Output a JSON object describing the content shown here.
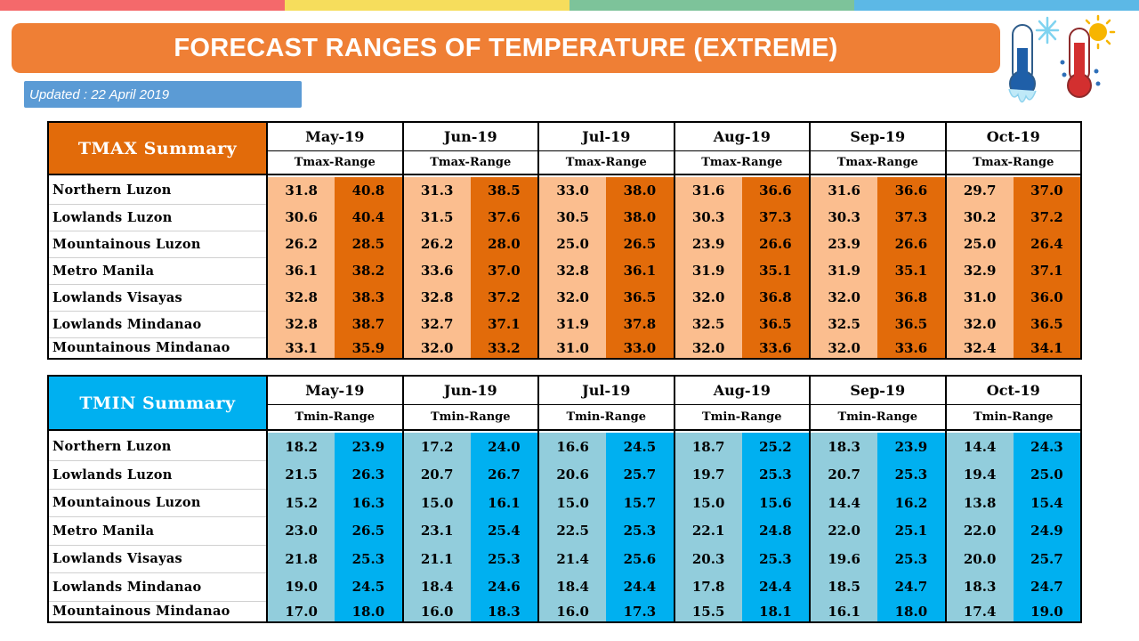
{
  "top_stripe_colors": [
    "#F4696B",
    "#F6DD5C",
    "#7DC39A",
    "#5CB8E6"
  ],
  "title": "FORECAST RANGES OF TEMPERATURE (EXTREME)",
  "updated": "Updated : 22 April 2019",
  "icons": [
    "cold-thermometer-snowflake-icon",
    "hot-thermometer-sun-icon"
  ],
  "colors": {
    "banner": "#EF7F35",
    "updated_box": "#5B9BD5",
    "tmax_dark": "#E26B0A",
    "tmax_light": "#FBBE8F",
    "tmin_dark": "#00B0F0",
    "tmin_light": "#92CDDC"
  },
  "months": [
    "May-19",
    "Jun-19",
    "Jul-19",
    "Aug-19",
    "Sep-19",
    "Oct-19"
  ],
  "tmax": {
    "label": "TMAX Summary",
    "range_label": "Tmax-Range",
    "rows": [
      {
        "region": "Northern Luzon",
        "values": [
          "31.8",
          "40.8",
          "31.3",
          "38.5",
          "33.0",
          "38.0",
          "31.6",
          "36.6",
          "31.6",
          "36.6",
          "29.7",
          "37.0"
        ]
      },
      {
        "region": "Lowlands Luzon",
        "values": [
          "30.6",
          "40.4",
          "31.5",
          "37.6",
          "30.5",
          "38.0",
          "30.3",
          "37.3",
          "30.3",
          "37.3",
          "30.2",
          "37.2"
        ]
      },
      {
        "region": "Mountainous Luzon",
        "values": [
          "26.2",
          "28.5",
          "26.2",
          "28.0",
          "25.0",
          "26.5",
          "23.9",
          "26.6",
          "23.9",
          "26.6",
          "25.0",
          "26.4"
        ]
      },
      {
        "region": "Metro Manila",
        "values": [
          "36.1",
          "38.2",
          "33.6",
          "37.0",
          "32.8",
          "36.1",
          "31.9",
          "35.1",
          "31.9",
          "35.1",
          "32.9",
          "37.1"
        ]
      },
      {
        "region": "Lowlands Visayas",
        "values": [
          "32.8",
          "38.3",
          "32.8",
          "37.2",
          "32.0",
          "36.5",
          "32.0",
          "36.8",
          "32.0",
          "36.8",
          "31.0",
          "36.0"
        ]
      },
      {
        "region": "Lowlands Mindanao",
        "values": [
          "32.8",
          "38.7",
          "32.7",
          "37.1",
          "31.9",
          "37.8",
          "32.5",
          "36.5",
          "32.5",
          "36.5",
          "32.0",
          "36.5"
        ]
      },
      {
        "region": "Mountainous Mindanao",
        "values": [
          "33.1",
          "35.9",
          "32.0",
          "33.2",
          "31.0",
          "33.0",
          "32.0",
          "33.6",
          "32.0",
          "33.6",
          "32.4",
          "34.1"
        ]
      }
    ]
  },
  "tmin": {
    "label": "TMIN Summary",
    "range_label": "Tmin-Range",
    "rows": [
      {
        "region": "Northern Luzon",
        "values": [
          "18.2",
          "23.9",
          "17.2",
          "24.0",
          "16.6",
          "24.5",
          "18.7",
          "25.2",
          "18.3",
          "23.9",
          "14.4",
          "24.3"
        ]
      },
      {
        "region": "Lowlands Luzon",
        "values": [
          "21.5",
          "26.3",
          "20.7",
          "26.7",
          "20.6",
          "25.7",
          "19.7",
          "25.3",
          "20.7",
          "25.3",
          "19.4",
          "25.0"
        ]
      },
      {
        "region": "Mountainous Luzon",
        "values": [
          "15.2",
          "16.3",
          "15.0",
          "16.1",
          "15.0",
          "15.7",
          "15.0",
          "15.6",
          "14.4",
          "16.2",
          "13.8",
          "15.4"
        ]
      },
      {
        "region": "Metro Manila",
        "values": [
          "23.0",
          "26.5",
          "23.1",
          "25.4",
          "22.5",
          "25.3",
          "22.1",
          "24.8",
          "22.0",
          "25.1",
          "22.0",
          "24.9"
        ]
      },
      {
        "region": "Lowlands Visayas",
        "values": [
          "21.8",
          "25.3",
          "21.1",
          "25.3",
          "21.4",
          "25.6",
          "20.3",
          "25.3",
          "19.6",
          "25.3",
          "20.0",
          "25.7"
        ]
      },
      {
        "region": "Lowlands Mindanao",
        "values": [
          "19.0",
          "24.5",
          "18.4",
          "24.6",
          "18.4",
          "24.4",
          "17.8",
          "24.4",
          "18.5",
          "24.7",
          "18.3",
          "24.7"
        ]
      },
      {
        "region": "Mountainous Mindanao",
        "values": [
          "17.0",
          "18.0",
          "16.0",
          "18.3",
          "16.0",
          "17.3",
          "15.5",
          "18.1",
          "16.1",
          "18.0",
          "17.4",
          "19.0"
        ]
      }
    ]
  }
}
